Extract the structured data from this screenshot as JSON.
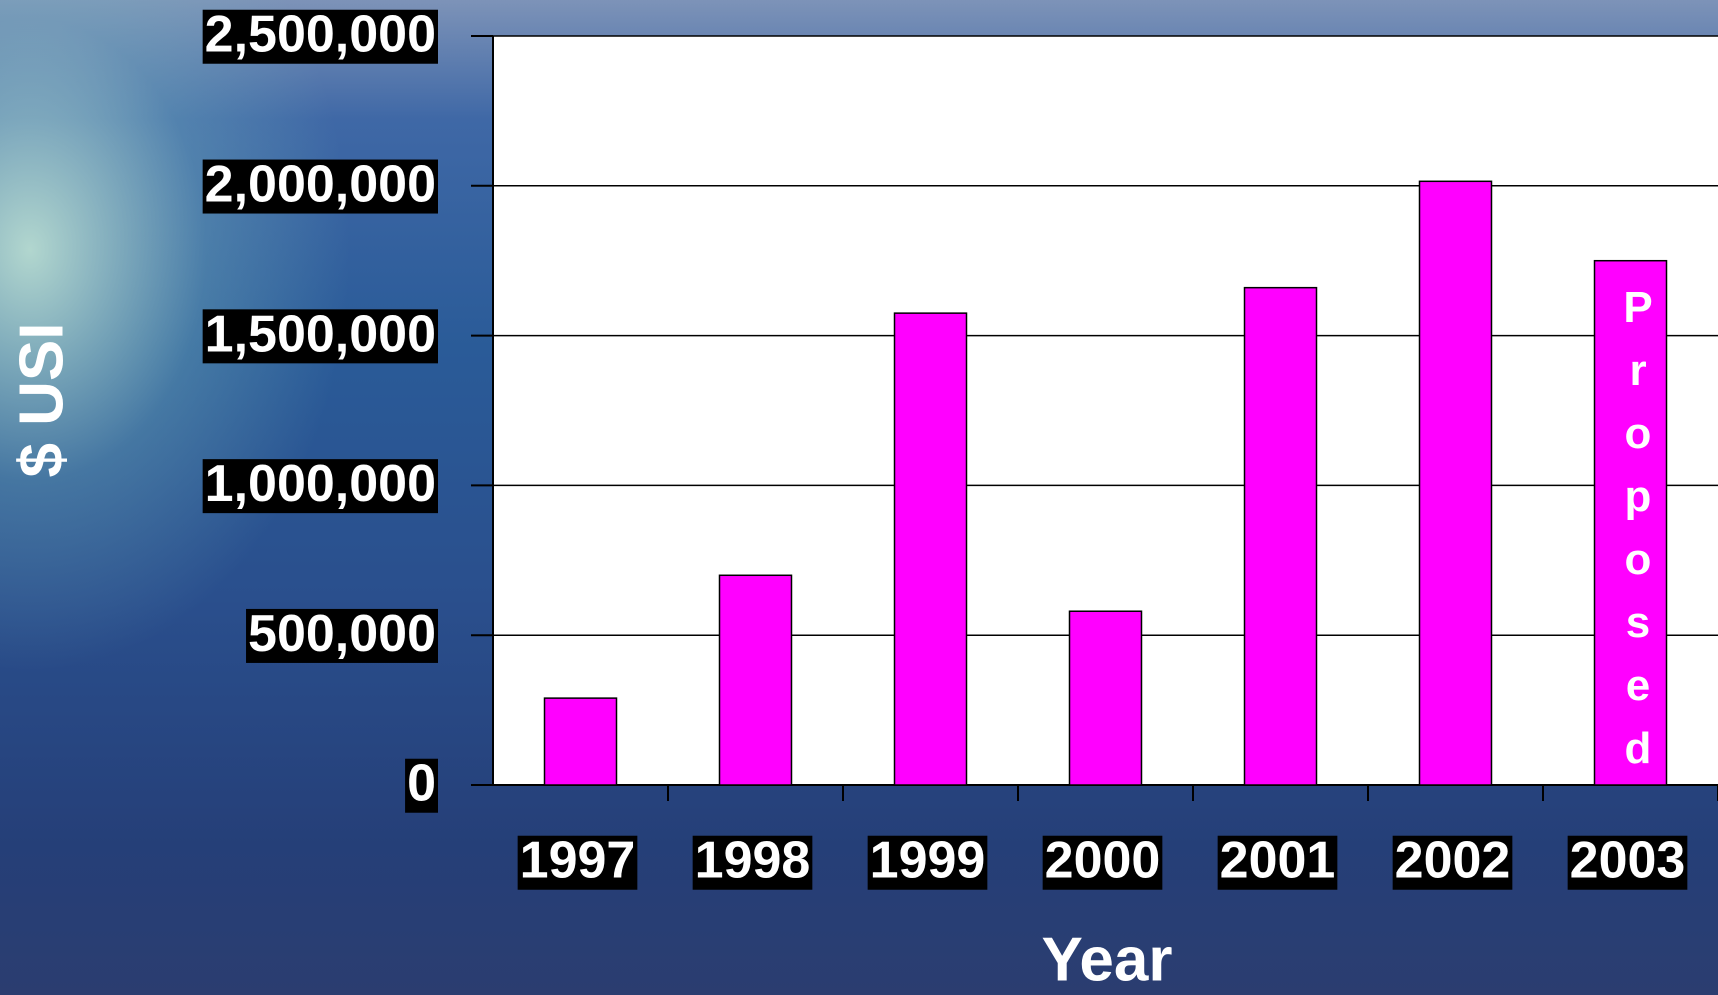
{
  "chart_data": {
    "type": "bar",
    "y_label": "$ USI",
    "x_label": "Year",
    "categories": [
      "1997",
      "1998",
      "1999",
      "2000",
      "2001",
      "2002",
      "2003"
    ],
    "values": [
      290000,
      700000,
      1575000,
      580000,
      1660000,
      2015000,
      1750000
    ],
    "color": "#ff00ff",
    "annotation": "Proposed",
    "ylim": [
      0,
      2500000
    ],
    "yticks": [
      0,
      {
        "value": 500000,
        "label": "500,000"
      },
      {
        "value": 1000000,
        "label": "1,000,000"
      },
      {
        "value": 1500000,
        "label": "1,500,000"
      },
      {
        "value": 2000000,
        "label": "2,000,000"
      },
      {
        "value": 2500000,
        "label": "2,500,000"
      }
    ],
    "grid": true
  }
}
